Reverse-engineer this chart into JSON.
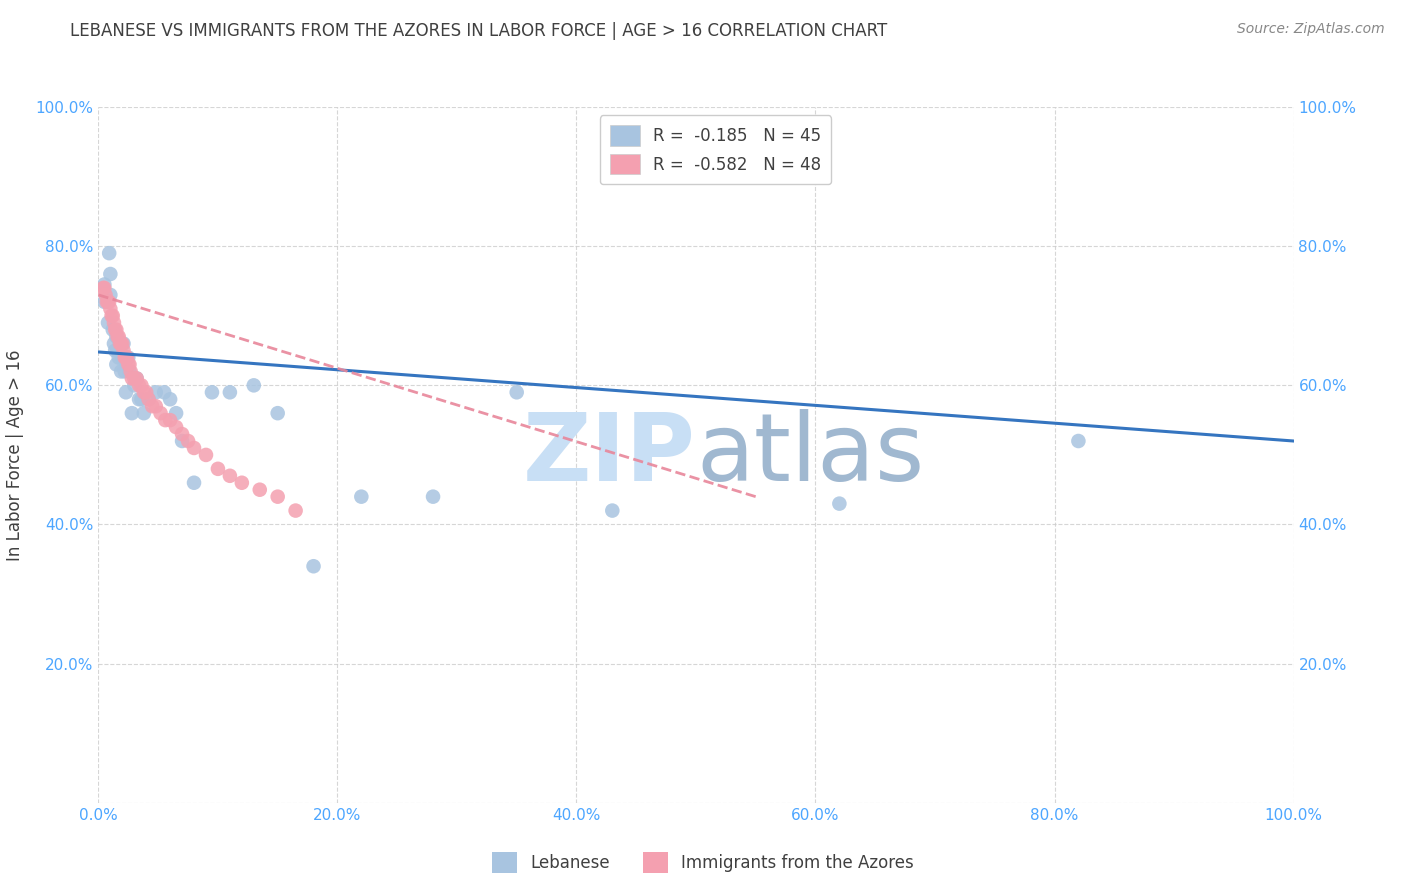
{
  "title": "LEBANESE VS IMMIGRANTS FROM THE AZORES IN LABOR FORCE | AGE > 16 CORRELATION CHART",
  "source": "Source: ZipAtlas.com",
  "xlabel": "",
  "ylabel": "In Labor Force | Age > 16",
  "xlim": [
    0,
    1.0
  ],
  "ylim": [
    0,
    1.0
  ],
  "xticks": [
    0.0,
    0.2,
    0.4,
    0.6,
    0.8,
    1.0
  ],
  "yticks": [
    0.0,
    0.2,
    0.4,
    0.6,
    0.8,
    1.0
  ],
  "xticklabels": [
    "0.0%",
    "20.0%",
    "40.0%",
    "60.0%",
    "80.0%",
    "100.0%"
  ],
  "yticklabels": [
    "",
    "20.0%",
    "40.0%",
    "60.0%",
    "80.0%",
    "100.0%"
  ],
  "right_yticklabels": [
    "",
    "20.0%",
    "40.0%",
    "60.0%",
    "80.0%",
    "100.0%"
  ],
  "legend_label1": "R =  -0.185   N = 45",
  "legend_label2": "R =  -0.582   N = 48",
  "color_lebanese": "#a8c4e0",
  "color_azores": "#f4a0b0",
  "trendline_lebanese_color": "#3575c0",
  "trendline_azores_color": "#e8869a",
  "grid_color": "#cccccc",
  "background_color": "#ffffff",
  "title_color": "#404040",
  "axis_color": "#4da6ff",
  "watermark_color_zip": "#c8dff5",
  "watermark_color_atlas": "#a0b8d0",
  "lebanese_x": [
    0.005,
    0.005,
    0.008,
    0.009,
    0.01,
    0.01,
    0.012,
    0.013,
    0.014,
    0.015,
    0.015,
    0.016,
    0.017,
    0.018,
    0.019,
    0.02,
    0.021,
    0.022,
    0.023,
    0.025,
    0.026,
    0.028,
    0.03,
    0.032,
    0.034,
    0.036,
    0.038,
    0.042,
    0.048,
    0.055,
    0.06,
    0.065,
    0.07,
    0.08,
    0.095,
    0.11,
    0.13,
    0.15,
    0.18,
    0.22,
    0.28,
    0.35,
    0.43,
    0.62,
    0.82
  ],
  "lebanese_y": [
    0.745,
    0.72,
    0.69,
    0.79,
    0.76,
    0.73,
    0.68,
    0.66,
    0.65,
    0.67,
    0.63,
    0.65,
    0.64,
    0.66,
    0.62,
    0.64,
    0.66,
    0.62,
    0.59,
    0.64,
    0.62,
    0.56,
    0.6,
    0.61,
    0.58,
    0.58,
    0.56,
    0.58,
    0.59,
    0.59,
    0.58,
    0.56,
    0.52,
    0.46,
    0.59,
    0.59,
    0.6,
    0.56,
    0.34,
    0.44,
    0.44,
    0.59,
    0.42,
    0.43,
    0.52
  ],
  "azores_x": [
    0.004,
    0.005,
    0.006,
    0.007,
    0.008,
    0.009,
    0.01,
    0.011,
    0.012,
    0.013,
    0.014,
    0.015,
    0.016,
    0.017,
    0.018,
    0.019,
    0.02,
    0.021,
    0.022,
    0.023,
    0.024,
    0.025,
    0.026,
    0.027,
    0.028,
    0.03,
    0.032,
    0.034,
    0.036,
    0.038,
    0.04,
    0.042,
    0.045,
    0.048,
    0.052,
    0.056,
    0.06,
    0.065,
    0.07,
    0.075,
    0.08,
    0.09,
    0.1,
    0.11,
    0.12,
    0.135,
    0.15,
    0.165
  ],
  "azores_y": [
    0.74,
    0.74,
    0.73,
    0.72,
    0.72,
    0.72,
    0.71,
    0.7,
    0.7,
    0.69,
    0.68,
    0.68,
    0.67,
    0.67,
    0.66,
    0.66,
    0.66,
    0.65,
    0.64,
    0.64,
    0.64,
    0.63,
    0.63,
    0.62,
    0.61,
    0.61,
    0.61,
    0.6,
    0.6,
    0.59,
    0.59,
    0.58,
    0.57,
    0.57,
    0.56,
    0.55,
    0.55,
    0.54,
    0.53,
    0.52,
    0.51,
    0.5,
    0.48,
    0.47,
    0.46,
    0.45,
    0.44,
    0.42
  ]
}
